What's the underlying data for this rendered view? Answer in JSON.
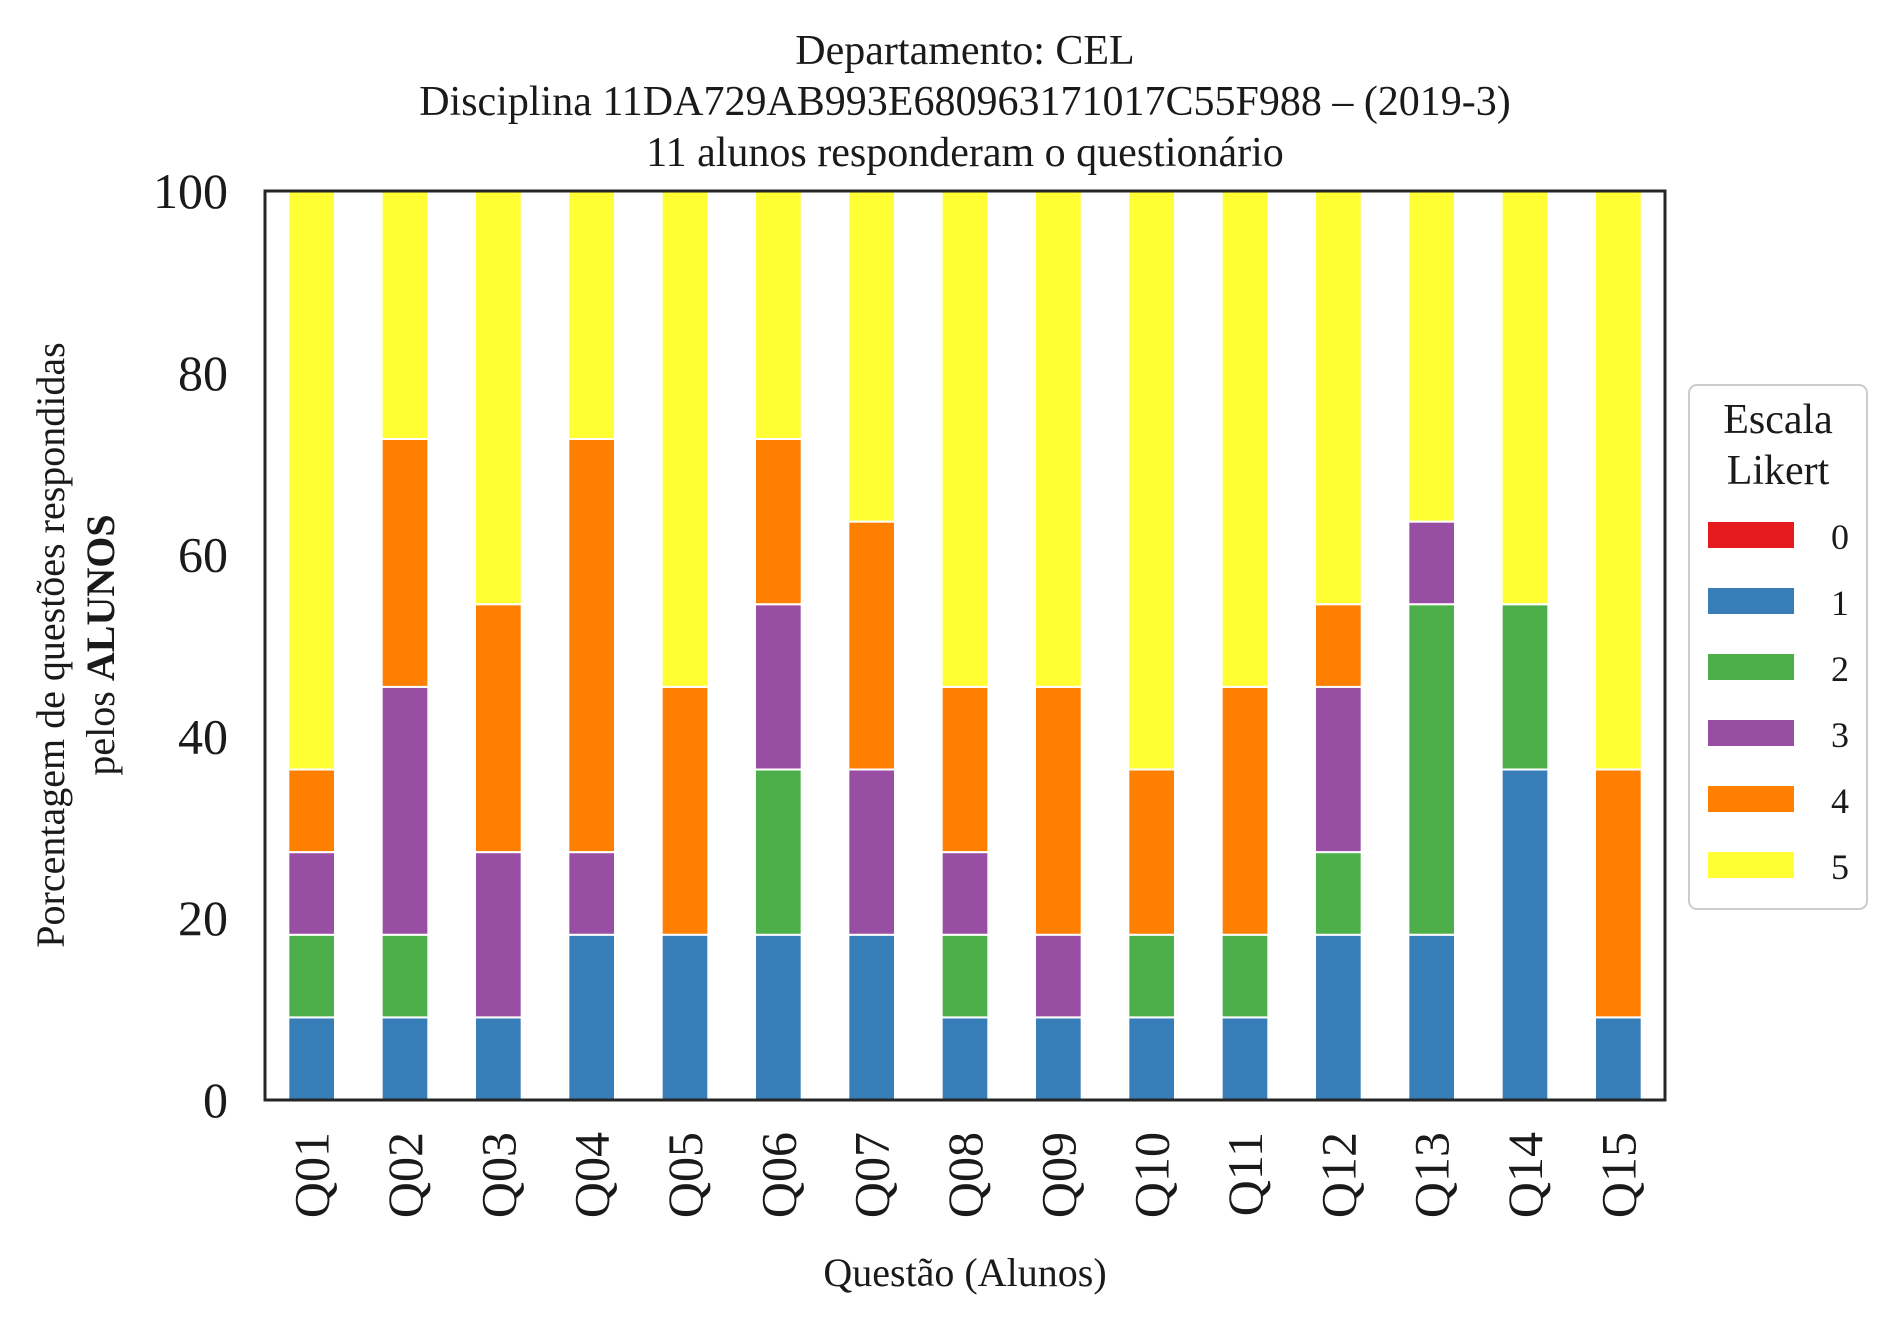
{
  "chart_data": {
    "type": "bar",
    "stacked": true,
    "title_lines": [
      "Departamento: CEL",
      "Disciplina 11DA729AB993E680963171017C55F988 – (2019-3)",
      "11 alunos responderam o questionário"
    ],
    "xlabel": "Questão (Alunos)",
    "ylabel_lines": [
      "Porcentagem de questões respondidas",
      "pelos ",
      "ALUNOS"
    ],
    "ylim": [
      0,
      100
    ],
    "yticks": [
      "0",
      "20",
      "40",
      "60",
      "80",
      "100"
    ],
    "grid": false,
    "legend": {
      "title_lines": [
        "Escala",
        "Likert"
      ],
      "placement": "center-right, outside plot"
    },
    "categories": [
      "Q01",
      "Q02",
      "Q03",
      "Q04",
      "Q05",
      "Q06",
      "Q07",
      "Q08",
      "Q09",
      "Q10",
      "Q11",
      "Q12",
      "Q13",
      "Q14",
      "Q15"
    ],
    "series": [
      {
        "name": "0",
        "color": "#e41a1c",
        "values": [
          0,
          0,
          0,
          0,
          0,
          0,
          0,
          0,
          0,
          0,
          0,
          0,
          0,
          0,
          0
        ]
      },
      {
        "name": "1",
        "color": "#377eb8",
        "values": [
          9.09,
          9.09,
          9.09,
          18.18,
          18.18,
          18.18,
          18.18,
          9.09,
          9.09,
          9.09,
          9.09,
          18.18,
          18.18,
          36.36,
          9.09
        ]
      },
      {
        "name": "2",
        "color": "#4daf4a",
        "values": [
          9.09,
          9.09,
          0,
          0,
          0,
          18.18,
          0,
          9.09,
          0,
          9.09,
          9.09,
          9.09,
          36.36,
          18.18,
          0
        ]
      },
      {
        "name": "3",
        "color": "#984ea3",
        "values": [
          9.09,
          27.27,
          18.18,
          9.09,
          0,
          18.18,
          18.18,
          9.09,
          9.09,
          0,
          0,
          18.18,
          9.09,
          0,
          0
        ]
      },
      {
        "name": "4",
        "color": "#ff7f00",
        "values": [
          9.09,
          27.27,
          27.27,
          45.45,
          27.27,
          18.18,
          27.27,
          18.18,
          27.27,
          18.18,
          27.27,
          9.09,
          0,
          0,
          27.27
        ]
      },
      {
        "name": "5",
        "color": "#ffff33",
        "values": [
          63.64,
          27.27,
          45.45,
          27.27,
          54.55,
          27.27,
          36.36,
          54.55,
          54.55,
          63.64,
          54.55,
          45.45,
          36.36,
          45.45,
          63.64
        ]
      }
    ]
  }
}
